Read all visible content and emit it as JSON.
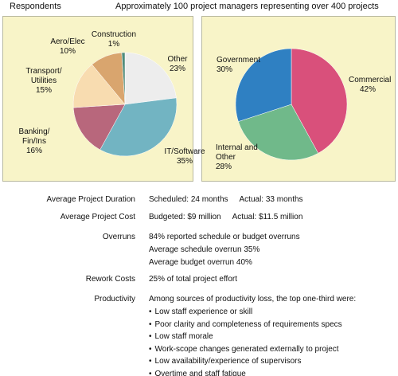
{
  "header": {
    "label": "Respondents",
    "description": "Approximately 100 project managers representing over 400 projects"
  },
  "chart_data": [
    {
      "type": "pie",
      "categories": [
        "Other",
        "IT/Software",
        "Banking/\nFin/Ins",
        "Transport/\nUtilities",
        "Aero/Elec",
        "Construction"
      ],
      "values": [
        23,
        35,
        16,
        15,
        10,
        1
      ],
      "value_labels": [
        "23%",
        "35%",
        "16%",
        "15%",
        "10%",
        "1%"
      ],
      "colors": [
        "#ededed",
        "#72b4c2",
        "#b8677c",
        "#f8dcb0",
        "#d9a56e",
        "#4f8c7b"
      ]
    },
    {
      "type": "pie",
      "categories": [
        "Commercial",
        "Internal and\nOther",
        "Government"
      ],
      "values": [
        42,
        28,
        30
      ],
      "value_labels": [
        "42%",
        "28%",
        "30%"
      ],
      "colors": [
        "#d9507b",
        "#70b98a",
        "#2f80c2"
      ]
    }
  ],
  "stats": {
    "rows": [
      {
        "label": "Average Project Duration",
        "parts": [
          "Scheduled: 24 months",
          "Actual: 33 months"
        ]
      },
      {
        "label": "Average Project Cost",
        "parts": [
          "Budgeted: $9 million",
          "Actual: $11.5 million"
        ]
      },
      {
        "label": "Overruns",
        "lines": [
          "84% reported schedule or budget overruns",
          "Average schedule overrun 35%",
          "Average budget overrun 40%"
        ]
      },
      {
        "label": "Rework Costs",
        "lines": [
          "25% of total project effort"
        ]
      },
      {
        "label": "Productivity",
        "lines": [
          "Among sources of productivity loss, the top one-third were:"
        ],
        "bullets": [
          "Low staff experience or skill",
          "Poor clarity and completeness of requirements specs",
          "Low staff morale",
          "Work-scope changes generated externally to project",
          "Low availability/experience of supervisors",
          "Overtime and staff fatigue"
        ]
      }
    ]
  }
}
